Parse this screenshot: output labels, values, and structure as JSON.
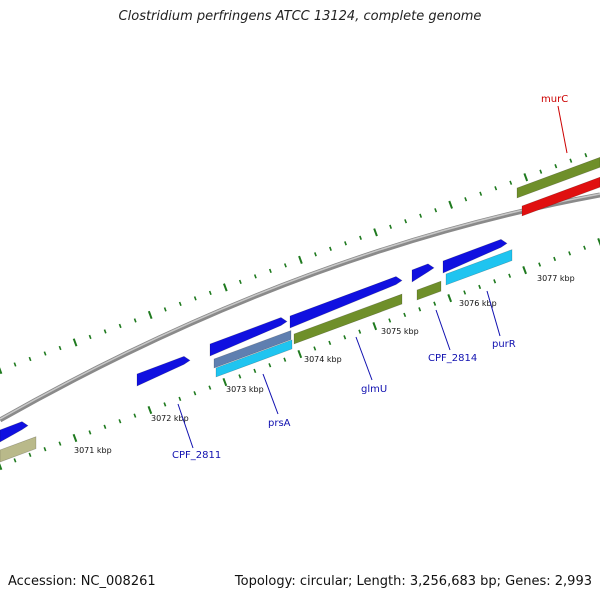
{
  "title": "Clostridium perfringens ATCC 13124, complete genome",
  "footer": {
    "accession_label": "Accession:",
    "accession_value": "NC_008261",
    "topology_text": "Topology: circular; Length: 3,256,683 bp; Genes: 2,993"
  },
  "colors": {
    "backbone": "#8a8a8a",
    "tick": "#1f7a1f",
    "forward_cds": "#1010e0",
    "forward_cds_alt": "#5f7fb0",
    "reverse_cds": "#1fc4f0",
    "olive_feature": "#6f8f2a",
    "pale_feature": "#b9b98a",
    "rna_feature": "#e01010",
    "label_blue": "#1010b0",
    "label_red": "#cc0000"
  },
  "scale_labels": [
    "3071 kbp",
    "3072 kbp",
    "3073 kbp",
    "3074 kbp",
    "3075 kbp",
    "3076 kbp",
    "3077 kbp"
  ],
  "gene_labels": [
    {
      "name": "CPF_2811",
      "color": "label_blue"
    },
    {
      "name": "prsA",
      "color": "label_blue"
    },
    {
      "name": "glmU",
      "color": "label_blue"
    },
    {
      "name": "CPF_2814",
      "color": "label_blue"
    },
    {
      "name": "purR",
      "color": "label_blue"
    },
    {
      "name": "murC",
      "color": "label_red"
    }
  ]
}
